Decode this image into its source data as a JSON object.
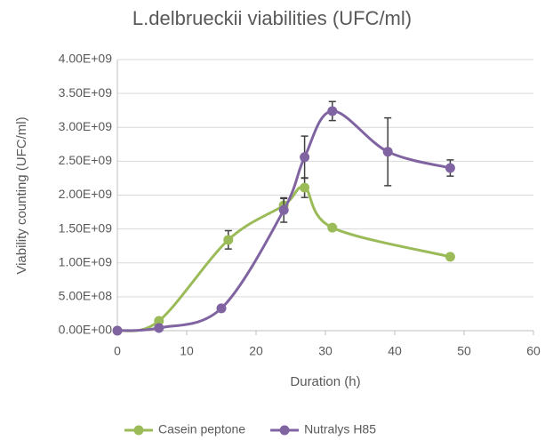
{
  "chart_data": {
    "type": "scatter",
    "title": "L.delbrueckii viabilities (UFC/ml)",
    "x_label": "Duration (h)",
    "y_label": "Viability counting (UFC/ml)",
    "xlim": [
      0,
      60
    ],
    "xticks": [
      0,
      10,
      20,
      30,
      40,
      50,
      60
    ],
    "ylim": [
      0,
      4000000000
    ],
    "yticks": [
      {
        "value": 0,
        "label": "0.00E+00"
      },
      {
        "value": 500000000,
        "label": "5.00E+08"
      },
      {
        "value": 1000000000,
        "label": "1.00E+09"
      },
      {
        "value": 1500000000,
        "label": "1.50E+09"
      },
      {
        "value": 2000000000,
        "label": "2.00E+09"
      },
      {
        "value": 2500000000,
        "label": "2.50E+09"
      },
      {
        "value": 3000000000,
        "label": "3.00E+09"
      },
      {
        "value": 3500000000,
        "label": "3.50E+09"
      },
      {
        "value": 4000000000,
        "label": "4.00E+09"
      }
    ],
    "grid": true,
    "smooth": true,
    "legend": "bottom",
    "series": [
      {
        "name": "Casein peptone",
        "color": "#9bbb59",
        "x": [
          0,
          6,
          16,
          24,
          27,
          31,
          48
        ],
        "values": [
          0,
          144000000,
          1340000000,
          1850000000,
          2110000000,
          1520000000,
          1090000000
        ],
        "errors": [
          null,
          null,
          135000000,
          100000000,
          145000000,
          null,
          null
        ]
      },
      {
        "name": "Nutralys H85",
        "color": "#8064a2",
        "x": [
          0,
          6,
          15,
          24,
          27,
          31,
          39,
          48
        ],
        "values": [
          0,
          40000000,
          330000000,
          1780000000,
          2560000000,
          3240000000,
          2640000000,
          2400000000
        ],
        "errors": [
          null,
          null,
          null,
          180000000,
          310000000,
          140000000,
          500000000,
          120000000
        ]
      }
    ]
  }
}
